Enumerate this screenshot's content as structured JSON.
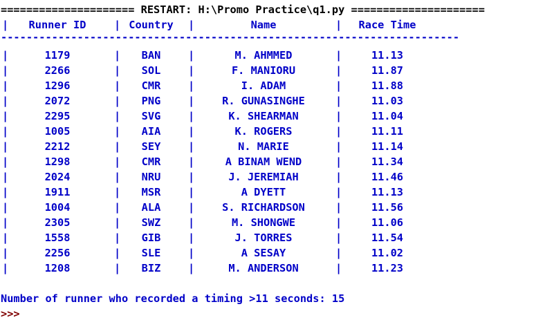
{
  "shell": {
    "restart_banner": "===================== RESTART: H:\\Promo Practice\\q1.py =====================",
    "table": {
      "headers": {
        "runner_id": "Runner ID",
        "country": "Country",
        "name": "Name",
        "race_time": "Race Time"
      },
      "separator": "------------------------------------------------------------------------",
      "pipe": "|",
      "rows": [
        {
          "runner_id": "1179",
          "country": "BAN",
          "name": "M. AHMMED",
          "race_time": "11.13"
        },
        {
          "runner_id": "2266",
          "country": "SOL",
          "name": "F. MANIORU",
          "race_time": "11.87"
        },
        {
          "runner_id": "1296",
          "country": "CMR",
          "name": "I. ADAM",
          "race_time": "11.88"
        },
        {
          "runner_id": "2072",
          "country": "PNG",
          "name": "R. GUNASINGHE",
          "race_time": "11.03"
        },
        {
          "runner_id": "2295",
          "country": "SVG",
          "name": "K. SHEARMAN",
          "race_time": "11.04"
        },
        {
          "runner_id": "1005",
          "country": "AIA",
          "name": "K. ROGERS",
          "race_time": "11.11"
        },
        {
          "runner_id": "2212",
          "country": "SEY",
          "name": "N. MARIE",
          "race_time": "11.14"
        },
        {
          "runner_id": "1298",
          "country": "CMR",
          "name": "A BINAM WEND",
          "race_time": "11.34"
        },
        {
          "runner_id": "2024",
          "country": "NRU",
          "name": "J. JEREMIAH",
          "race_time": "11.46"
        },
        {
          "runner_id": "1911",
          "country": "MSR",
          "name": "A DYETT",
          "race_time": "11.13"
        },
        {
          "runner_id": "1004",
          "country": "ALA",
          "name": "S. RICHARDSON",
          "race_time": "11.56"
        },
        {
          "runner_id": "2305",
          "country": "SWZ",
          "name": "M. SHONGWE",
          "race_time": "11.06"
        },
        {
          "runner_id": "1558",
          "country": "GIB",
          "name": "J. TORRES",
          "race_time": "11.54"
        },
        {
          "runner_id": "2256",
          "country": "SLE",
          "name": "A SESAY",
          "race_time": "11.02"
        },
        {
          "runner_id": "1208",
          "country": "BIZ",
          "name": "M. ANDERSON",
          "race_time": "11.23"
        }
      ]
    },
    "summary": "Number of runner who recorded a timing >11 seconds: 15",
    "prompt": ">>>"
  },
  "colors": {
    "output_blue": "#0000c8",
    "banner_black": "#000000",
    "prompt_maroon": "#7f0000",
    "background": "#ffffff"
  }
}
